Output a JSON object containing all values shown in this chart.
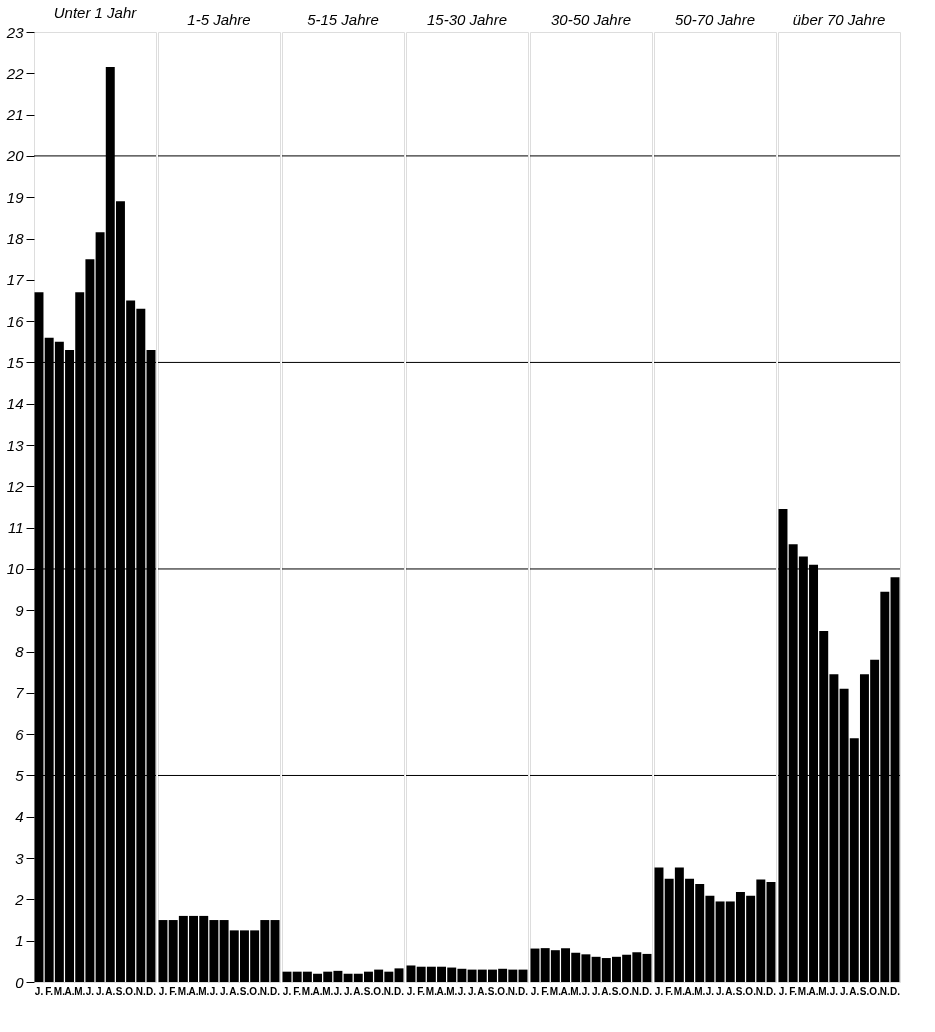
{
  "chart_data": [
    {
      "type": "bar",
      "title": "Unter 1 Jahr",
      "categories": [
        "J.",
        "F.",
        "M.",
        "A.",
        "M.",
        "J.",
        "J.",
        "A.",
        "S.",
        "O.",
        "N.",
        "D."
      ],
      "values": [
        16.7,
        15.6,
        15.5,
        15.3,
        16.7,
        17.5,
        18.15,
        22.15,
        18.9,
        16.5,
        16.3,
        15.3
      ],
      "color": "#000000",
      "ylim": [
        0,
        23
      ],
      "yticks": [
        0,
        1,
        2,
        3,
        4,
        5,
        6,
        7,
        8,
        9,
        10,
        11,
        12,
        13,
        14,
        15,
        16,
        17,
        18,
        19,
        20,
        21,
        22,
        23
      ],
      "ref_lines": [
        {
          "axis": "y",
          "value": 5
        },
        {
          "axis": "y",
          "value": 10
        },
        {
          "axis": "y",
          "value": 15
        },
        {
          "axis": "y",
          "value": 20
        }
      ]
    },
    {
      "type": "bar",
      "title": "1-5 Jahre",
      "categories": [
        "J.",
        "F.",
        "M.",
        "A.",
        "M.",
        "J.",
        "J.",
        "A.",
        "S.",
        "O.",
        "N.",
        "D."
      ],
      "values": [
        1.5,
        1.5,
        1.6,
        1.6,
        1.6,
        1.5,
        1.5,
        1.25,
        1.25,
        1.25,
        1.5,
        1.5
      ],
      "color": "#000000",
      "ylim": [
        0,
        23
      ],
      "tick_labels": "x",
      "ref_lines": [
        {
          "axis": "y",
          "value": 5
        },
        {
          "axis": "y",
          "value": 10
        },
        {
          "axis": "y",
          "value": 15
        },
        {
          "axis": "y",
          "value": 20
        }
      ]
    },
    {
      "type": "bar",
      "title": "5-15 Jahre",
      "categories": [
        "J.",
        "F.",
        "M.",
        "A.",
        "M.",
        "J.",
        "J.",
        "A.",
        "S.",
        "O.",
        "N.",
        "D."
      ],
      "values": [
        0.25,
        0.25,
        0.25,
        0.2,
        0.25,
        0.27,
        0.2,
        0.2,
        0.25,
        0.3,
        0.25,
        0.33
      ],
      "color": "#000000",
      "ylim": [
        0,
        23
      ],
      "tick_labels": "x",
      "ref_lines": [
        {
          "axis": "y",
          "value": 5
        },
        {
          "axis": "y",
          "value": 10
        },
        {
          "axis": "y",
          "value": 15
        },
        {
          "axis": "y",
          "value": 20
        }
      ]
    },
    {
      "type": "bar",
      "title": "15-30 Jahre",
      "categories": [
        "J.",
        "F.",
        "M.",
        "A.",
        "M.",
        "J.",
        "J.",
        "A.",
        "S.",
        "O.",
        "N.",
        "D."
      ],
      "values": [
        0.4,
        0.37,
        0.37,
        0.37,
        0.35,
        0.32,
        0.3,
        0.3,
        0.3,
        0.32,
        0.3,
        0.3
      ],
      "color": "#000000",
      "ylim": [
        0,
        23
      ],
      "tick_labels": "x",
      "ref_lines": [
        {
          "axis": "y",
          "value": 5
        },
        {
          "axis": "y",
          "value": 10
        },
        {
          "axis": "y",
          "value": 15
        },
        {
          "axis": "y",
          "value": 20
        }
      ]
    },
    {
      "type": "bar",
      "title": "30-50 Jahre",
      "categories": [
        "J.",
        "F.",
        "M.",
        "A.",
        "M.",
        "J.",
        "J.",
        "A.",
        "S.",
        "O.",
        "N.",
        "D."
      ],
      "values": [
        0.81,
        0.82,
        0.77,
        0.82,
        0.71,
        0.67,
        0.61,
        0.58,
        0.61,
        0.66,
        0.72,
        0.68
      ],
      "color": "#000000",
      "ylim": [
        0,
        23
      ],
      "tick_labels": "x",
      "ref_lines": [
        {
          "axis": "y",
          "value": 5
        },
        {
          "axis": "y",
          "value": 10
        },
        {
          "axis": "y",
          "value": 15
        },
        {
          "axis": "y",
          "value": 20
        }
      ]
    },
    {
      "type": "bar",
      "title": "50-70 Jahre",
      "categories": [
        "J.",
        "F.",
        "M.",
        "A.",
        "M.",
        "J.",
        "J.",
        "A.",
        "S.",
        "O.",
        "N.",
        "D."
      ],
      "values": [
        2.77,
        2.5,
        2.77,
        2.5,
        2.37,
        2.09,
        1.95,
        1.95,
        2.18,
        2.09,
        2.48,
        2.42
      ],
      "color": "#000000",
      "ylim": [
        0,
        23
      ],
      "tick_labels": "x",
      "ref_lines": [
        {
          "axis": "y",
          "value": 5
        },
        {
          "axis": "y",
          "value": 10
        },
        {
          "axis": "y",
          "value": 15
        },
        {
          "axis": "y",
          "value": 20
        }
      ]
    },
    {
      "type": "bar",
      "title": "über 70 Jahre",
      "categories": [
        "J.",
        "F.",
        "M.",
        "A.",
        "M.",
        "J.",
        "J.",
        "A.",
        "S.",
        "O.",
        "N.",
        "D."
      ],
      "values": [
        11.45,
        10.6,
        10.3,
        10.1,
        8.5,
        7.45,
        7.1,
        5.9,
        7.45,
        7.8,
        9.45,
        9.8
      ],
      "color": "#000000",
      "ylim": [
        0,
        23
      ],
      "tick_labels": "x",
      "ref_lines": [
        {
          "axis": "y",
          "value": 5
        },
        {
          "axis": "y",
          "value": 10
        },
        {
          "axis": "y",
          "value": 15
        },
        {
          "axis": "y",
          "value": 20
        }
      ]
    }
  ]
}
